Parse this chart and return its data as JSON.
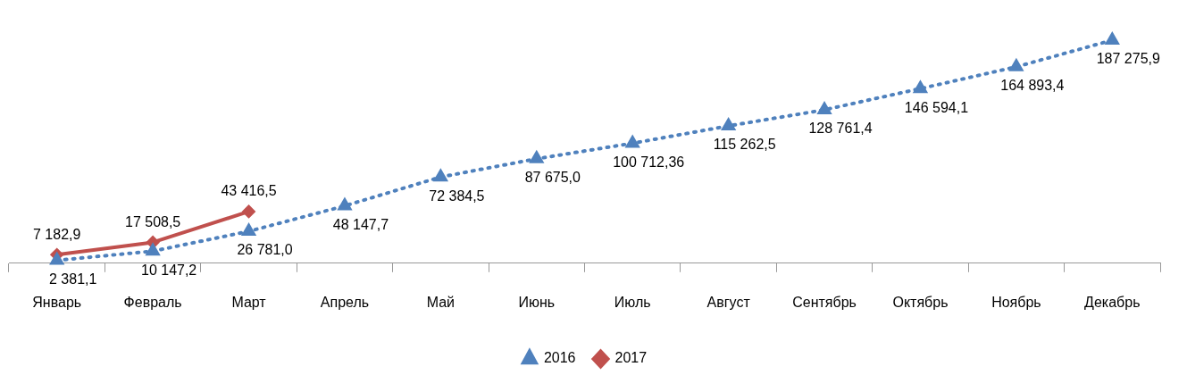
{
  "chart_data": {
    "type": "line",
    "categories": [
      "Январь",
      "Февраль",
      "Март",
      "Апрель",
      "Май",
      "Июнь",
      "Июль",
      "Август",
      "Сентябрь",
      "Октябрь",
      "Ноябрь",
      "Декабрь"
    ],
    "series": [
      {
        "name": "2016",
        "color": "#4f81bd",
        "marker": "triangle",
        "line_style": "dotted",
        "values": [
          2381.1,
          10147.2,
          26781.0,
          48147.7,
          72384.5,
          87675.0,
          100712.36,
          115262.5,
          128761.4,
          146594.1,
          164893.4,
          187275.9
        ],
        "value_labels": [
          "2 381,1",
          "10 147,2",
          "26 781,0",
          "48 147,7",
          "72 384,5",
          "87 675,0",
          "100 712,36",
          "115 262,5",
          "128 761,4",
          "146 594,1",
          "164 893,4",
          "187 275,9"
        ]
      },
      {
        "name": "2017",
        "color": "#c0504d",
        "marker": "diamond",
        "line_style": "solid",
        "values": [
          7182.9,
          17508.5,
          43416.5,
          null,
          null,
          null,
          null,
          null,
          null,
          null,
          null,
          null
        ],
        "value_labels": [
          "7 182,9",
          "17 508,5",
          "43 416,5",
          null,
          null,
          null,
          null,
          null,
          null,
          null,
          null,
          null
        ]
      }
    ],
    "legend": "bottom",
    "grid": false
  }
}
